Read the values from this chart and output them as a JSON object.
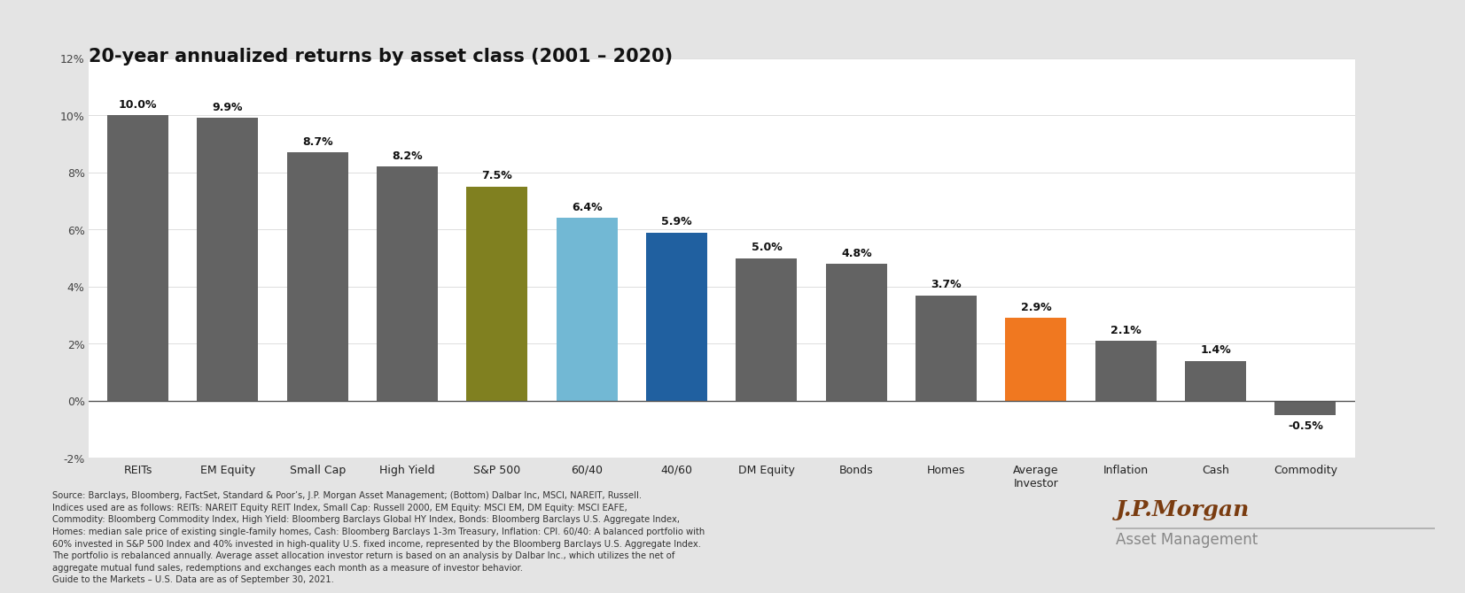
{
  "title": "20-year annualized returns by asset class (2001 – 2020)",
  "categories": [
    "REITs",
    "EM Equity",
    "Small Cap",
    "High Yield",
    "S&P 500",
    "60/40",
    "40/60",
    "DM Equity",
    "Bonds",
    "Homes",
    "Average\nInvestor",
    "Inflation",
    "Cash",
    "Commodity"
  ],
  "values": [
    10.0,
    9.9,
    8.7,
    8.2,
    7.5,
    6.4,
    5.9,
    5.0,
    4.8,
    3.7,
    2.9,
    2.1,
    1.4,
    -0.5
  ],
  "labels": [
    "10.0%",
    "9.9%",
    "8.7%",
    "8.2%",
    "7.5%",
    "6.4%",
    "5.9%",
    "5.0%",
    "4.8%",
    "3.7%",
    "2.9%",
    "2.1%",
    "1.4%",
    "-0.5%"
  ],
  "bar_colors": [
    "#636363",
    "#636363",
    "#636363",
    "#636363",
    "#808020",
    "#72b8d4",
    "#2060a0",
    "#636363",
    "#636363",
    "#636363",
    "#f07820",
    "#636363",
    "#636363",
    "#636363"
  ],
  "background_color": "#e4e4e4",
  "chart_bg": "#ffffff",
  "ylim": [
    -2,
    12
  ],
  "yticks": [
    -2,
    0,
    2,
    4,
    6,
    8,
    10,
    12
  ],
  "ytick_labels": [
    "-2%",
    "0%",
    "2%",
    "4%",
    "6%",
    "8%",
    "10%",
    "12%"
  ],
  "footer_text": "Source: Barclays, Bloomberg, FactSet, Standard & Poor’s, J.P. Morgan Asset Management; (Bottom) Dalbar Inc, MSCI, NAREIT, Russell.\nIndices used are as follows: REITs: NAREIT Equity REIT Index, Small Cap: Russell 2000, EM Equity: MSCI EM, DM Equity: MSCI EAFE,\nCommodity: Bloomberg Commodity Index, High Yield: Bloomberg Barclays Global HY Index, Bonds: Bloomberg Barclays U.S. Aggregate Index,\nHomes: median sale price of existing single-family homes, Cash: Bloomberg Barclays 1-3m Treasury, Inflation: CPI. 60/40: A balanced portfolio with\n60% invested in S&P 500 Index and 40% invested in high-quality U.S. fixed income, represented by the Bloomberg Barclays U.S. Aggregate Index.\nThe portfolio is rebalanced annually. Average asset allocation investor return is based on an analysis by Dalbar Inc., which utilizes the net of\naggregate mutual fund sales, redemptions and exchanges each month as a measure of investor behavior.\nGuide to the Markets – U.S. Data are as of September 30, 2021.",
  "jpmorgan_color": "#7a3c10",
  "asset_mgmt_color": "#888888",
  "title_fontsize": 15,
  "bar_label_fontsize": 9,
  "tick_fontsize": 9,
  "footer_fontsize": 7.2
}
